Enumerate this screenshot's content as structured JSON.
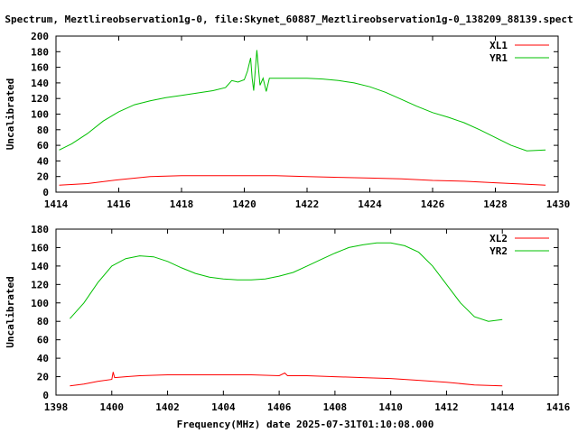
{
  "title": "Spectrum, Meztlireobservation1g-0, file:Skynet_60887_Meztlireobservation1g-0_138209_88139.spect",
  "xlabel": "Frequency(MHz) date 2025-07-31T01:10:08.000",
  "chart_data": [
    {
      "type": "line",
      "ylabel": "Uncalibrated",
      "xlim": [
        1414,
        1430
      ],
      "ylim": [
        0,
        200
      ],
      "xticks": [
        1414,
        1416,
        1418,
        1420,
        1422,
        1424,
        1426,
        1428,
        1430
      ],
      "yticks": [
        0,
        20,
        40,
        60,
        80,
        100,
        120,
        140,
        160,
        180,
        200
      ],
      "grid": false,
      "legend": "top-right",
      "series": [
        {
          "name": "XL1",
          "color": "#ff0000",
          "x": [
            1414.1,
            1415,
            1416,
            1417,
            1418,
            1419,
            1420,
            1421,
            1422,
            1423,
            1424,
            1425,
            1426,
            1427,
            1428,
            1429,
            1429.6
          ],
          "y": [
            9,
            11,
            16,
            20,
            21,
            21,
            21,
            21,
            20,
            19,
            18,
            17,
            15,
            14,
            12,
            10,
            9
          ]
        },
        {
          "name": "YR1",
          "color": "#00c000",
          "x": [
            1414.1,
            1414.5,
            1415,
            1415.5,
            1416,
            1416.5,
            1417,
            1417.5,
            1418,
            1418.5,
            1419,
            1419.4,
            1419.6,
            1419.8,
            1420.0,
            1420.1,
            1420.2,
            1420.25,
            1420.3,
            1420.4,
            1420.45,
            1420.5,
            1420.6,
            1420.7,
            1420.8,
            1421,
            1421.5,
            1422,
            1422.5,
            1423,
            1423.5,
            1424,
            1424.5,
            1425,
            1425.5,
            1426,
            1426.5,
            1427,
            1427.5,
            1428,
            1428.5,
            1429,
            1429.6
          ],
          "y": [
            54,
            62,
            75,
            91,
            103,
            112,
            117,
            121,
            124,
            127,
            130,
            134,
            143,
            141,
            144,
            155,
            172,
            146,
            130,
            182,
            160,
            137,
            146,
            129,
            146,
            146,
            146,
            146,
            145,
            143,
            140,
            135,
            128,
            119,
            110,
            102,
            96,
            89,
            80,
            70,
            60,
            53,
            54
          ]
        }
      ]
    },
    {
      "type": "line",
      "ylabel": "Uncalibrated",
      "xlim": [
        1398,
        1416
      ],
      "ylim": [
        0,
        180
      ],
      "xticks": [
        1398,
        1400,
        1402,
        1404,
        1406,
        1408,
        1410,
        1412,
        1414,
        1416
      ],
      "yticks": [
        0,
        20,
        40,
        60,
        80,
        100,
        120,
        140,
        160,
        180
      ],
      "grid": false,
      "legend": "top-right",
      "series": [
        {
          "name": "XL2",
          "color": "#ff0000",
          "x": [
            1398.5,
            1399,
            1399.5,
            1400.0,
            1400.05,
            1400.1,
            1400.5,
            1401,
            1402,
            1403,
            1404,
            1405,
            1406,
            1406.2,
            1406.3,
            1406.4,
            1407,
            1408,
            1409,
            1410,
            1411,
            1412,
            1413,
            1414
          ],
          "y": [
            10,
            12,
            15,
            17,
            25,
            19,
            20,
            21,
            22,
            22,
            22,
            22,
            21,
            24,
            21,
            21,
            21,
            20,
            19,
            18,
            16,
            14,
            11,
            10
          ],
          "spikes": []
        },
        {
          "name": "YR2",
          "color": "#00c000",
          "x": [
            1398.5,
            1399,
            1399.5,
            1400,
            1400.5,
            1401,
            1401.5,
            1402,
            1402.5,
            1403,
            1403.5,
            1404,
            1404.5,
            1405,
            1405.5,
            1406,
            1406.5,
            1407,
            1407.5,
            1408,
            1408.5,
            1409,
            1409.5,
            1410,
            1410.5,
            1411,
            1411.5,
            1412,
            1412.5,
            1413,
            1413.5,
            1414
          ],
          "y": [
            83,
            100,
            122,
            140,
            148,
            151,
            150,
            145,
            138,
            132,
            128,
            126,
            125,
            125,
            126,
            129,
            133,
            140,
            147,
            154,
            160,
            163,
            165,
            165,
            162,
            155,
            140,
            120,
            100,
            85,
            80,
            82
          ]
        }
      ]
    }
  ]
}
